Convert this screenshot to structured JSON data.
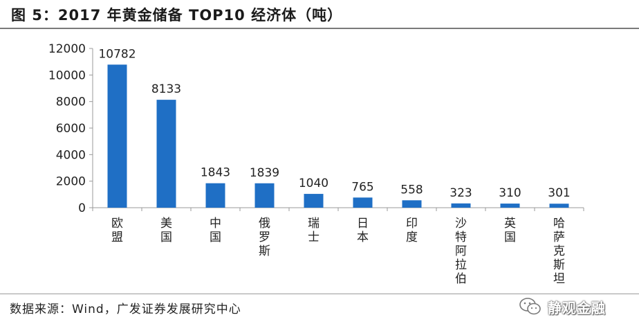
{
  "title": "图 5：2017 年黄金储备 TOP10 经济体（吨）",
  "source": "数据来源：Wind，广发证券发展研究中心",
  "watermark": {
    "text": "静观金融",
    "icon": "wechat-icon"
  },
  "colors": {
    "bar": "#1f6fc5",
    "axis": "#999999",
    "text": "#222222"
  },
  "chart_data": {
    "type": "bar",
    "categories": [
      "欧盟",
      "美国",
      "中国",
      "俄罗斯",
      "瑞士",
      "日本",
      "印度",
      "沙特阿拉伯",
      "英国",
      "哈萨克斯坦"
    ],
    "category_lines": [
      [
        "欧",
        "盟"
      ],
      [
        "美",
        "国"
      ],
      [
        "中",
        "国"
      ],
      [
        "俄",
        "罗",
        "斯"
      ],
      [
        "瑞",
        "士"
      ],
      [
        "日",
        "本"
      ],
      [
        "印",
        "度"
      ],
      [
        "沙",
        "特",
        "阿",
        "拉",
        "伯"
      ],
      [
        "英",
        "国"
      ],
      [
        "哈",
        "萨",
        "克",
        "斯",
        "坦"
      ]
    ],
    "values": [
      10782,
      8133,
      1843,
      1839,
      1040,
      765,
      558,
      323,
      310,
      301
    ],
    "y_ticks": [
      0,
      2000,
      4000,
      6000,
      8000,
      10000,
      12000
    ],
    "ylim": [
      0,
      12000
    ],
    "grid": false,
    "legend": false,
    "data_labels": true
  }
}
